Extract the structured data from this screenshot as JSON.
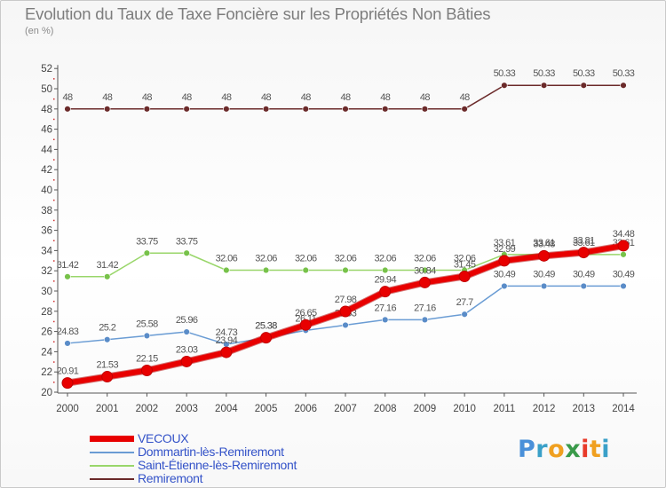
{
  "title": "Evolution du Taux de Taxe Foncière sur les Propriétés Non Bâties",
  "unit_label": "(en %)",
  "logo": {
    "text": "Proxiti",
    "letters": [
      "P",
      "r",
      "o",
      "x",
      "i",
      "t",
      "i"
    ],
    "colors": [
      "#4a90d9",
      "#3aa0c8",
      "#f0a020",
      "#3a9a4a",
      "#e83a2a",
      "#f0a020",
      "#3aa0c8"
    ]
  },
  "chart_data": {
    "type": "line",
    "title": "Evolution du Taux de Taxe Foncière sur les Propriétés Non Bâties",
    "ylabel": "(en %)",
    "xlabel": "",
    "categories": [
      "2000",
      "2001",
      "2002",
      "2003",
      "2004",
      "2005",
      "2006",
      "2007",
      "2008",
      "2009",
      "2010",
      "2011",
      "2012",
      "2013",
      "2014"
    ],
    "ylim": [
      20,
      52
    ],
    "yticks": [
      20,
      22,
      24,
      26,
      28,
      30,
      32,
      34,
      36,
      38,
      40,
      42,
      44,
      46,
      48,
      50,
      52
    ],
    "grid": false,
    "legend_position": "bottom-left",
    "series": [
      {
        "name": "Remiremont",
        "color": "#6b2a2a",
        "marker": "#6b2a2a",
        "width": 1.5,
        "values": [
          48,
          48,
          48,
          48,
          48,
          48,
          48,
          48,
          48,
          48,
          48,
          50.33,
          50.33,
          50.33,
          50.33
        ],
        "labels": [
          "48",
          "48",
          "48",
          "48",
          "48",
          "48",
          "48",
          "48",
          "48",
          "48",
          "48",
          "50.33",
          "50.33",
          "50.33",
          "50.33"
        ]
      },
      {
        "name": "Saint-Étienne-lès-Remiremont",
        "color": "#99d66a",
        "marker": "#77c24a",
        "width": 1.5,
        "values": [
          31.42,
          31.42,
          33.75,
          33.75,
          32.06,
          32.06,
          32.06,
          32.06,
          32.06,
          32.06,
          32.06,
          33.61,
          33.61,
          33.61,
          33.61
        ],
        "labels": [
          "31.42",
          "31.42",
          "33.75",
          "33.75",
          "32.06",
          "32.06",
          "32.06",
          "32.06",
          "32.06",
          "32.06",
          "32.06",
          "33.61",
          "33.61",
          "33.61",
          "33.61"
        ]
      },
      {
        "name": "Dommartin-lès-Remiremont",
        "color": "#6a9cd4",
        "marker": "#5a8cc8",
        "width": 1.5,
        "values": [
          24.83,
          25.2,
          25.58,
          25.96,
          24.73,
          25.38,
          26.11,
          26.63,
          27.16,
          27.16,
          27.7,
          30.49,
          30.49,
          30.49,
          30.49
        ],
        "labels": [
          "24.83",
          "25.2",
          "25.58",
          "25.96",
          "24.73",
          "25.38",
          "26.11",
          "26.63",
          "27.16",
          "27.16",
          "27.7",
          "30.49",
          "30.49",
          "30.49",
          "30.49"
        ]
      },
      {
        "name": "VECOUX",
        "color": "#e80000",
        "marker": "#e80000",
        "width": 6,
        "values": [
          20.91,
          21.53,
          22.15,
          23.03,
          23.94,
          25.38,
          26.65,
          27.98,
          29.94,
          30.84,
          31.45,
          32.99,
          33.48,
          33.81,
          34.48
        ],
        "labels": [
          "20.91",
          "21.53",
          "22.15",
          "23.03",
          "23.94",
          "25.38",
          "26.65",
          "27.98",
          "29.94",
          "30.84",
          "31.45",
          "32.99",
          "33.48",
          "33.81",
          "34.48"
        ]
      }
    ],
    "legend": [
      {
        "name": "VECOUX",
        "color": "#e80000"
      },
      {
        "name": "Dommartin-lès-Remiremont",
        "color": "#6a9cd4"
      },
      {
        "name": "Saint-Étienne-lès-Remiremont",
        "color": "#99d66a"
      },
      {
        "name": "Remiremont",
        "color": "#6b2a2a"
      }
    ]
  }
}
